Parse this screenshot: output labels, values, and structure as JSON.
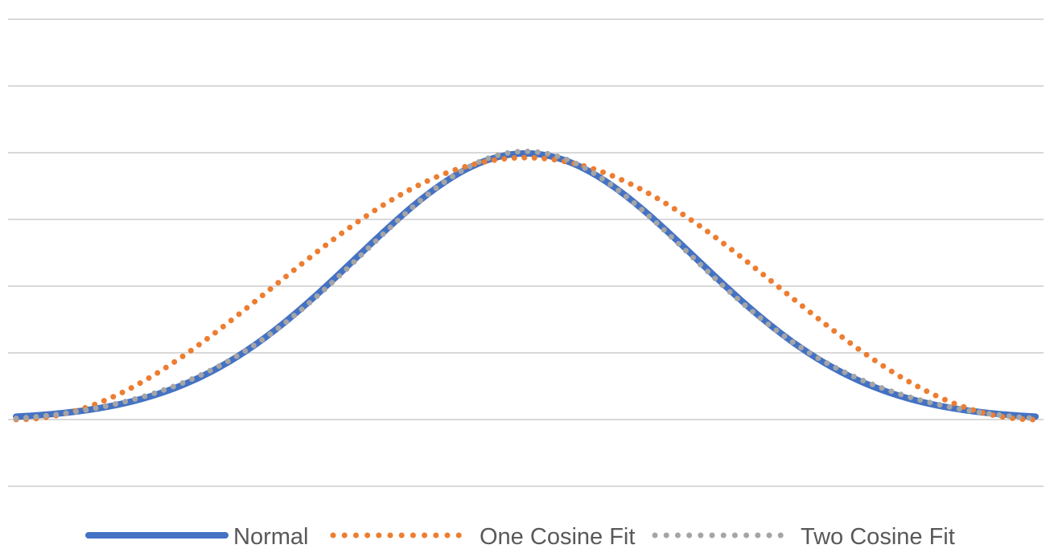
{
  "chart_data": {
    "type": "line",
    "title": "",
    "xlabel": "",
    "ylabel": "",
    "grid": true,
    "legend_position": "bottom",
    "x_range": [
      -3,
      3
    ],
    "y_range": [
      -0.1,
      0.6
    ],
    "gridlines": [
      -0.1,
      0.0,
      0.1,
      0.2,
      0.3,
      0.4,
      0.5,
      0.6
    ],
    "series": [
      {
        "name": "Normal",
        "color": "#4472C4",
        "style": "solid",
        "function": "normal",
        "params": {
          "mu": 0,
          "sigma": 1,
          "scale": 1.0
        }
      },
      {
        "name": "One Cosine Fit",
        "color": "#ED7D31",
        "style": "dotted",
        "function": "one_cosine",
        "params": {
          "a": 0.1963,
          "b": 0.1963,
          "k": 1.0472
        }
      },
      {
        "name": "Two Cosine Fit",
        "color": "#A5A5A5",
        "style": "dotted",
        "function": "two_cosine",
        "params": {
          "a": 0.2,
          "b": 0.2,
          "k1": 0.6,
          "c": 0.0,
          "k2": 1.2
        }
      }
    ]
  }
}
